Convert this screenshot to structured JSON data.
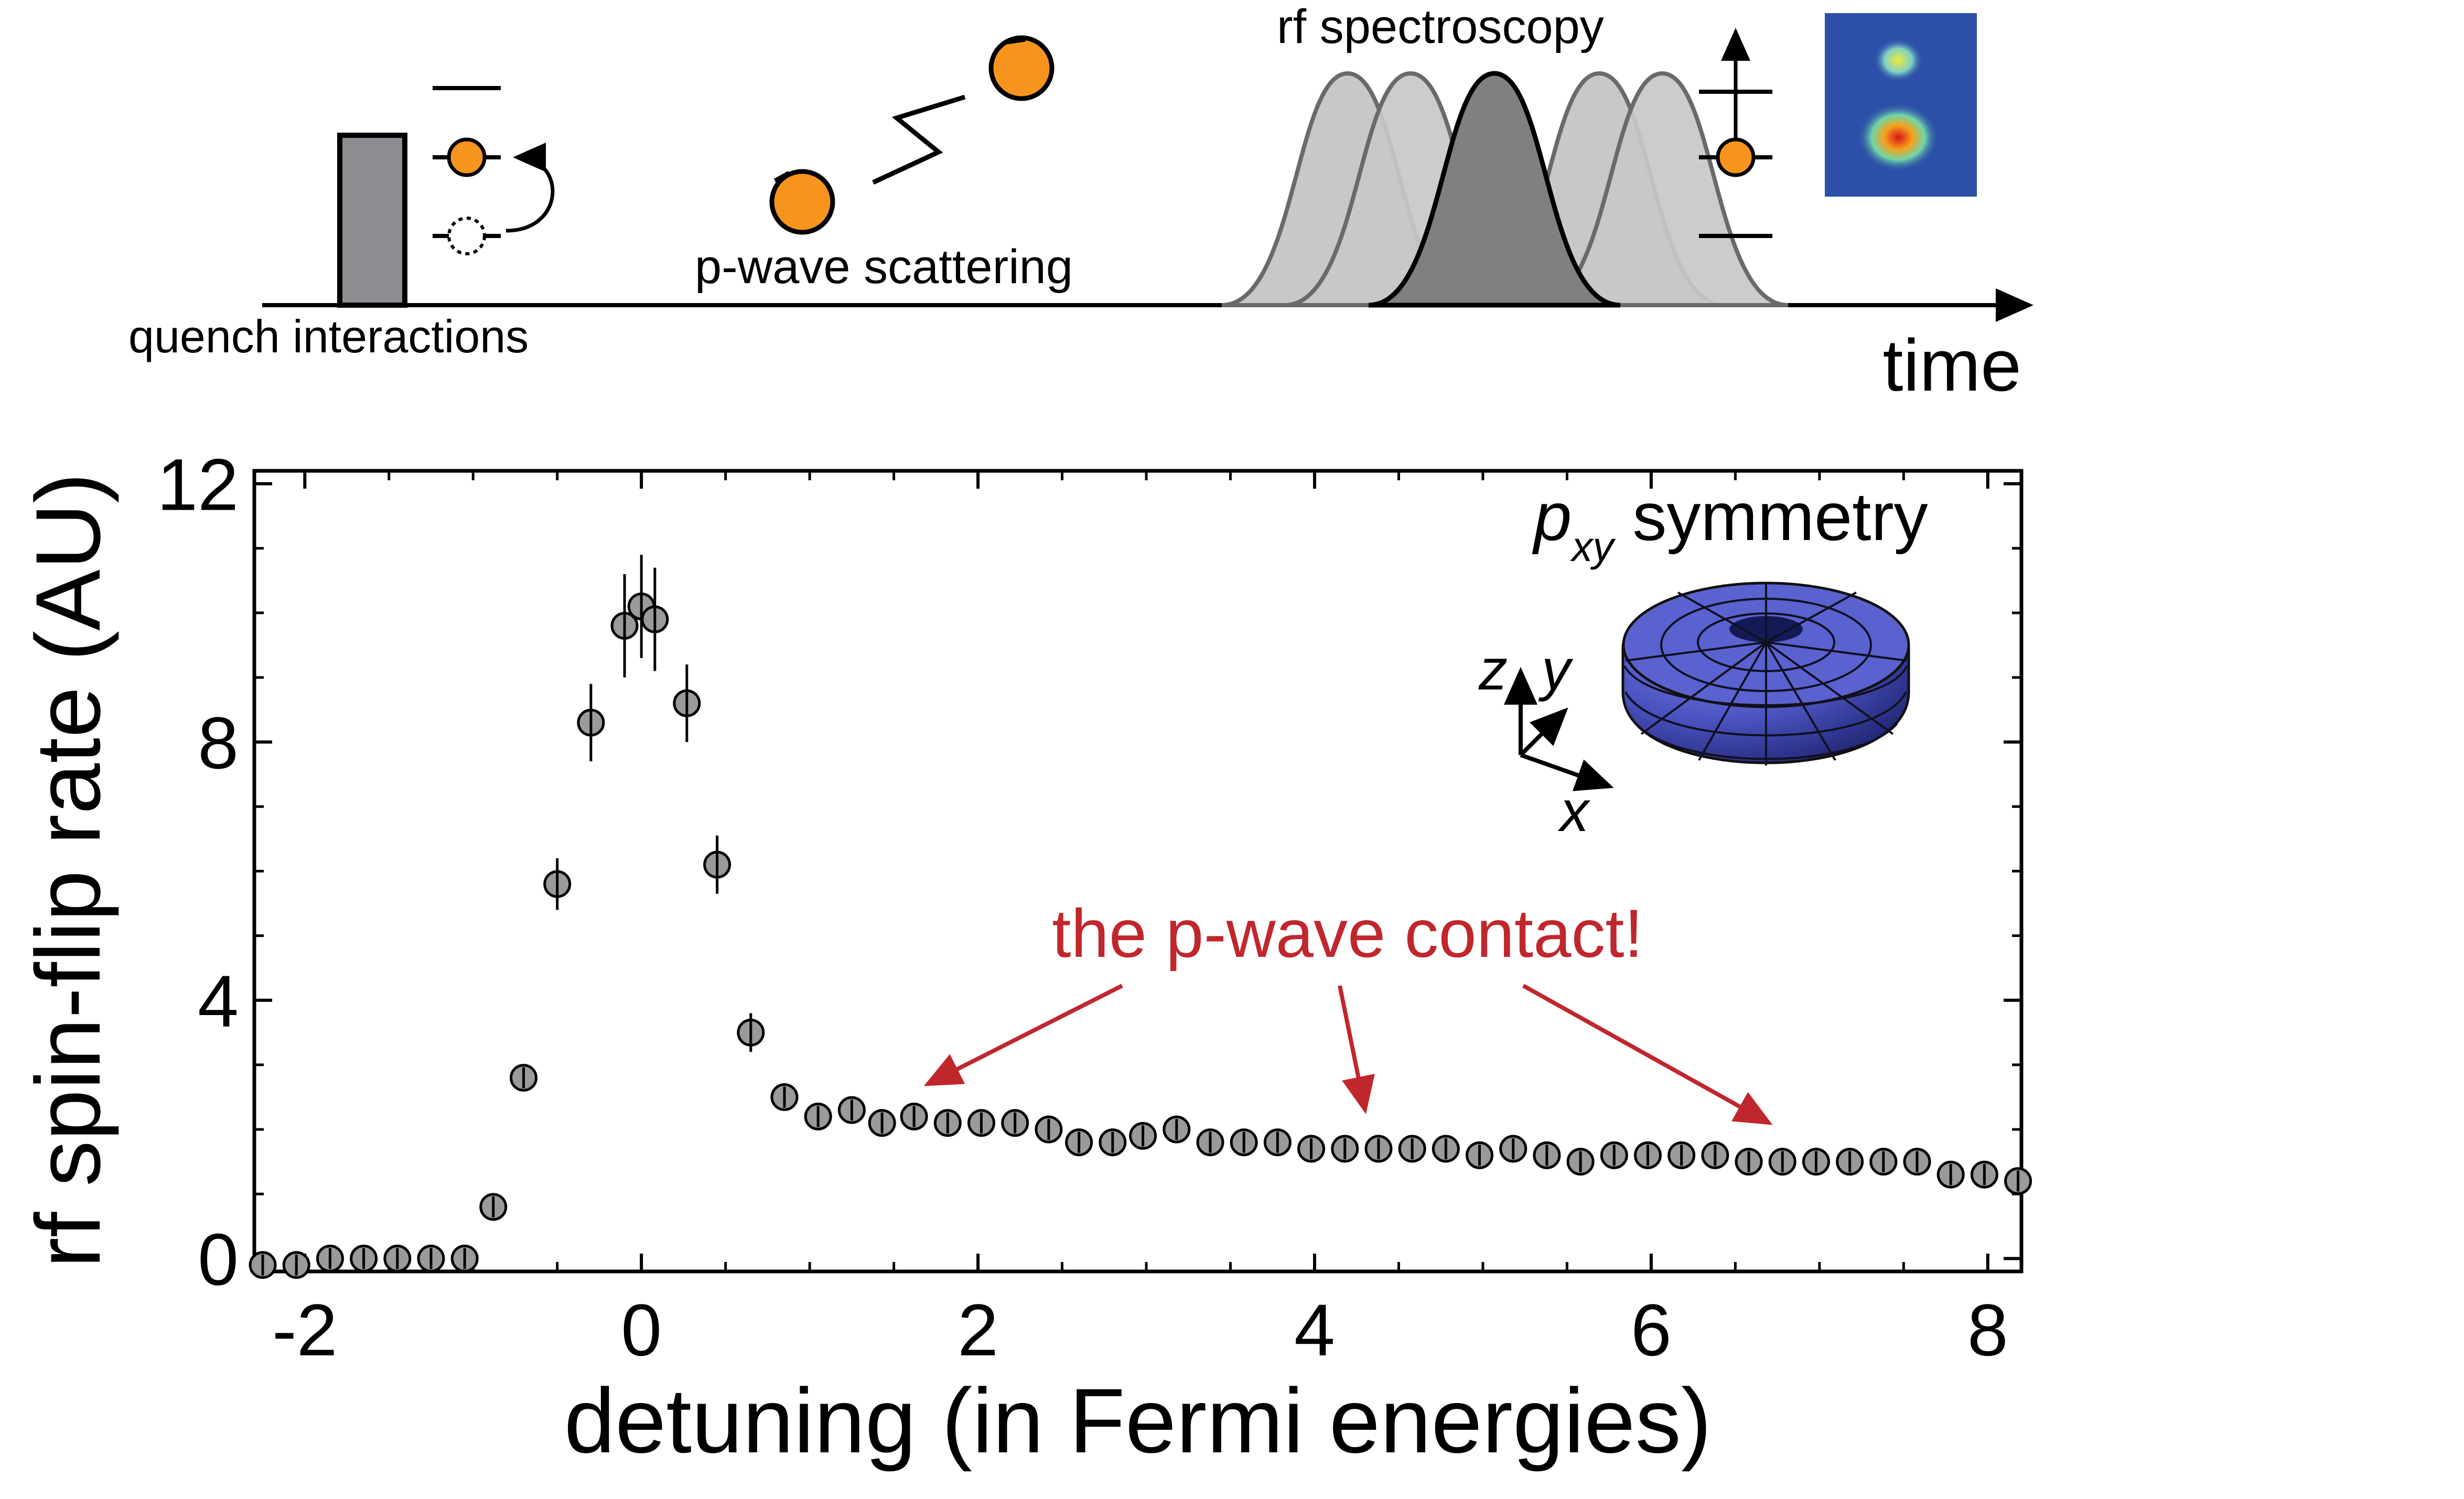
{
  "schematic": {
    "quench_label": "quench interactions",
    "pwave_label": "p-wave scattering",
    "rf_label": "rf spectroscopy",
    "time_label": "time",
    "colors": {
      "atom": "#F7941D",
      "quench_bar": "#8C8D91",
      "pulse_light": "#C8C8C8",
      "pulse_dark": "#808080",
      "line": "#000000"
    }
  },
  "chart_data": {
    "type": "scatter",
    "title": "",
    "xlabel": "detuning (in Fermi energies)",
    "ylabel": "rf spin-flip rate (AU)",
    "xlim": [
      -2.3,
      8.2
    ],
    "ylim": [
      -0.2,
      12.2
    ],
    "xticks": [
      -2,
      0,
      2,
      4,
      6,
      8
    ],
    "yticks": [
      0,
      4,
      8,
      12
    ],
    "grid": false,
    "series": [
      {
        "marker_color": "#9A9A9A",
        "x": [
          -2.25,
          -2.05,
          -1.85,
          -1.65,
          -1.45,
          -1.25,
          -1.05,
          -0.88,
          -0.7,
          -0.5,
          -0.3,
          -0.1,
          0.0,
          0.08,
          0.27,
          0.45,
          0.65,
          0.85,
          1.05,
          1.25,
          1.43,
          1.62,
          1.82,
          2.02,
          2.22,
          2.42,
          2.6,
          2.8,
          2.98,
          3.18,
          3.38,
          3.58,
          3.78,
          3.98,
          4.18,
          4.38,
          4.58,
          4.78,
          4.98,
          5.18,
          5.38,
          5.58,
          5.78,
          5.98,
          6.18,
          6.38,
          6.58,
          6.78,
          6.98,
          7.18,
          7.38,
          7.58,
          7.78,
          7.98,
          8.18
        ],
        "y": [
          -0.1,
          -0.1,
          0.0,
          0.0,
          0.0,
          0.0,
          0.0,
          0.8,
          2.8,
          5.8,
          8.3,
          9.8,
          10.1,
          9.9,
          8.6,
          6.1,
          3.5,
          2.5,
          2.2,
          2.3,
          2.1,
          2.2,
          2.1,
          2.1,
          2.1,
          2.0,
          1.8,
          1.8,
          1.9,
          2.0,
          1.8,
          1.8,
          1.8,
          1.7,
          1.7,
          1.7,
          1.7,
          1.7,
          1.6,
          1.7,
          1.6,
          1.5,
          1.6,
          1.6,
          1.6,
          1.6,
          1.5,
          1.5,
          1.5,
          1.5,
          1.5,
          1.5,
          1.3,
          1.3,
          1.2
        ],
        "yerr": [
          0.0,
          0.0,
          0.0,
          0.0,
          0.0,
          0.0,
          0.0,
          0.0,
          0.0,
          0.4,
          0.6,
          0.8,
          0.8,
          0.8,
          0.6,
          0.45,
          0.3,
          0.0,
          0.0,
          0.0,
          0.0,
          0.0,
          0.0,
          0.0,
          0.0,
          0.0,
          0.0,
          0.0,
          0.0,
          0.0,
          0.0,
          0.0,
          0.0,
          0.0,
          0.0,
          0.0,
          0.0,
          0.0,
          0.0,
          0.0,
          0.0,
          0.0,
          0.0,
          0.0,
          0.0,
          0.0,
          0.0,
          0.0,
          0.0,
          0.0,
          0.0,
          0.0,
          0.0,
          0.0,
          0.0
        ]
      }
    ],
    "annotation": {
      "text": "the p-wave contact!",
      "color": "#C0272D",
      "arrow_targets": [
        {
          "x": 1.7,
          "y": 2.7
        },
        {
          "x": 4.3,
          "y": 2.3
        },
        {
          "x": 6.7,
          "y": 2.1
        }
      ]
    },
    "inset": {
      "label_p": "p",
      "label_sub": "xy",
      "label_rest": " symmetry",
      "axes": [
        "z",
        "y",
        "x"
      ],
      "torus_color": "#3F47B0"
    }
  }
}
